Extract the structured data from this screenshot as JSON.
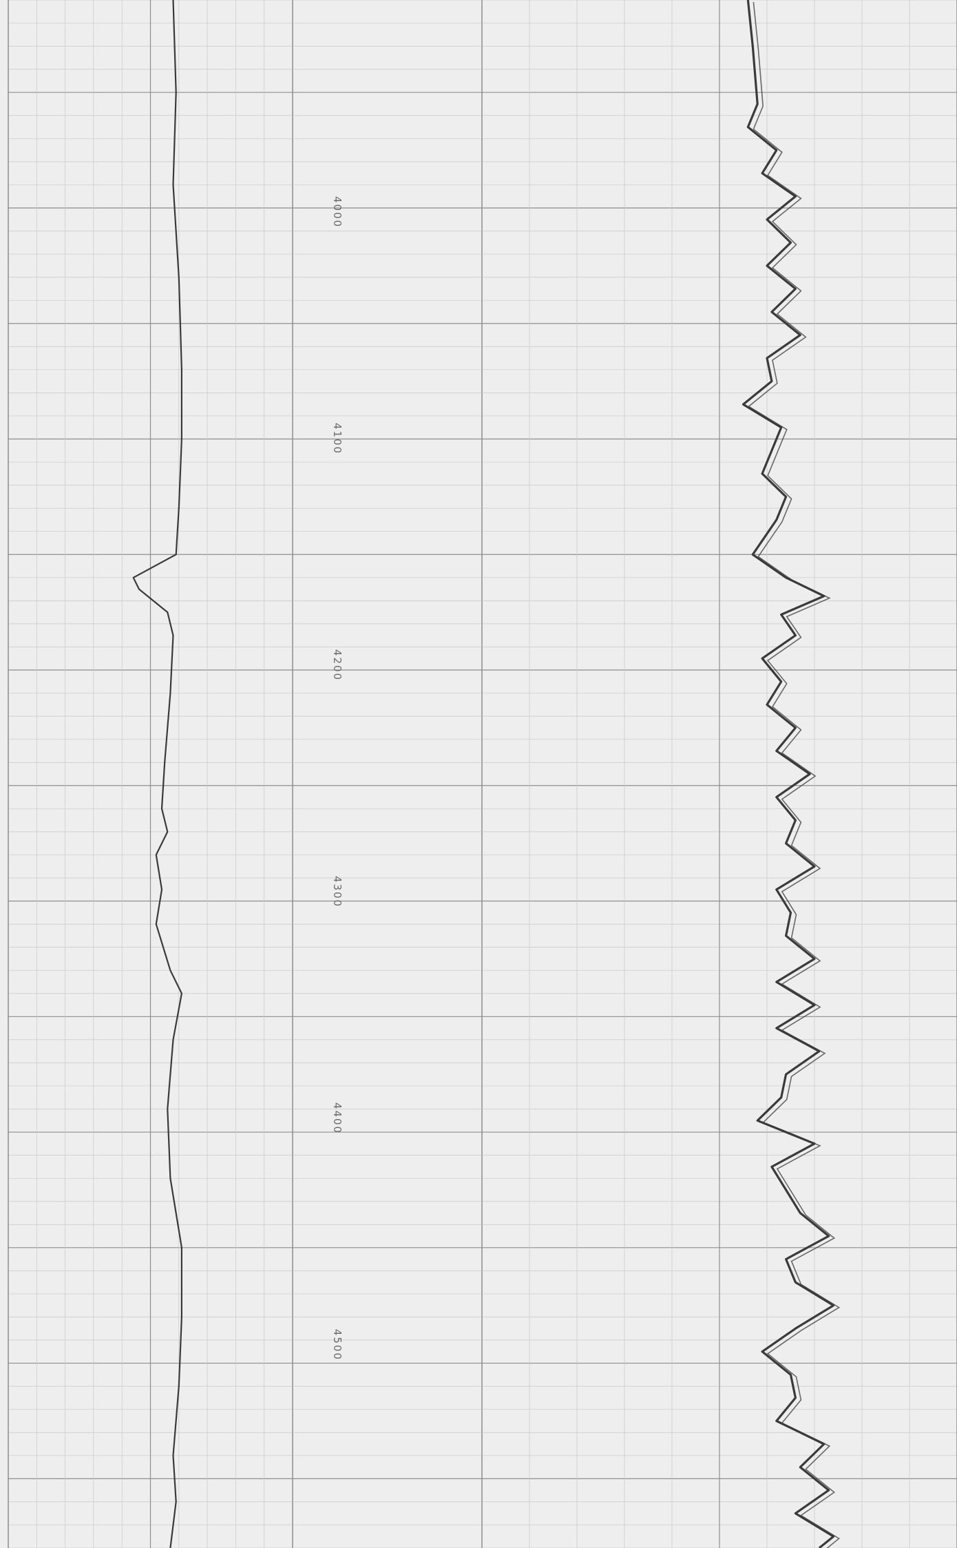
{
  "colors": {
    "paper": "#eeeeee",
    "grid_minor": "#c8c8c8",
    "grid_major": "#8d8d8d",
    "trace": "#3a3a3a",
    "depth_text": "#6a6a6a"
  },
  "chart_data": {
    "type": "line",
    "orientation": "vertical",
    "title": "",
    "depth_axis": {
      "label": "",
      "ticks": [
        "4000",
        "4100",
        "4200",
        "4300",
        "4400",
        "4500"
      ],
      "range": [
        3910,
        4580
      ],
      "grid": true
    },
    "tracks": [
      {
        "name": "",
        "xlim": [
          0,
          100
        ],
        "points": [
          [
            3910,
            58
          ],
          [
            3950,
            59
          ],
          [
            3990,
            58
          ],
          [
            4030,
            60
          ],
          [
            4070,
            61
          ],
          [
            4100,
            61
          ],
          [
            4130,
            60
          ],
          [
            4150,
            59
          ],
          [
            4160,
            44
          ],
          [
            4165,
            46
          ],
          [
            4175,
            56
          ],
          [
            4185,
            58
          ],
          [
            4210,
            57
          ],
          [
            4240,
            55
          ],
          [
            4260,
            54
          ],
          [
            4270,
            56
          ],
          [
            4280,
            52
          ],
          [
            4295,
            54
          ],
          [
            4310,
            52
          ],
          [
            4330,
            57
          ],
          [
            4340,
            61
          ],
          [
            4360,
            58
          ],
          [
            4390,
            56
          ],
          [
            4420,
            57
          ],
          [
            4450,
            61
          ],
          [
            4480,
            61
          ],
          [
            4510,
            60
          ],
          [
            4540,
            58
          ],
          [
            4560,
            59
          ],
          [
            4580,
            57
          ]
        ]
      },
      {
        "name": "",
        "xlim": [
          0,
          100
        ],
        "points": [
          [
            3910,
            56
          ],
          [
            3930,
            57
          ],
          [
            3955,
            58
          ],
          [
            3965,
            56
          ],
          [
            3975,
            62
          ],
          [
            3985,
            59
          ],
          [
            3995,
            66
          ],
          [
            4005,
            60
          ],
          [
            4015,
            65
          ],
          [
            4025,
            60
          ],
          [
            4035,
            66
          ],
          [
            4045,
            61
          ],
          [
            4055,
            67
          ],
          [
            4065,
            60
          ],
          [
            4075,
            61
          ],
          [
            4085,
            55
          ],
          [
            4095,
            63
          ],
          [
            4105,
            61
          ],
          [
            4115,
            59
          ],
          [
            4125,
            64
          ],
          [
            4135,
            62
          ],
          [
            4150,
            57
          ],
          [
            4160,
            64
          ],
          [
            4168,
            72
          ],
          [
            4176,
            63
          ],
          [
            4185,
            66
          ],
          [
            4195,
            59
          ],
          [
            4205,
            63
          ],
          [
            4215,
            60
          ],
          [
            4225,
            66
          ],
          [
            4235,
            62
          ],
          [
            4245,
            69
          ],
          [
            4255,
            62
          ],
          [
            4265,
            66
          ],
          [
            4275,
            64
          ],
          [
            4285,
            70
          ],
          [
            4295,
            62
          ],
          [
            4305,
            65
          ],
          [
            4315,
            64
          ],
          [
            4325,
            70
          ],
          [
            4335,
            62
          ],
          [
            4345,
            70
          ],
          [
            4355,
            62
          ],
          [
            4365,
            71
          ],
          [
            4375,
            64
          ],
          [
            4385,
            63
          ],
          [
            4395,
            58
          ],
          [
            4405,
            70
          ],
          [
            4415,
            61
          ],
          [
            4425,
            64
          ],
          [
            4435,
            67
          ],
          [
            4445,
            73
          ],
          [
            4455,
            64
          ],
          [
            4465,
            66
          ],
          [
            4475,
            74
          ],
          [
            4485,
            66
          ],
          [
            4495,
            59
          ],
          [
            4505,
            65
          ],
          [
            4515,
            66
          ],
          [
            4525,
            62
          ],
          [
            4535,
            72
          ],
          [
            4545,
            67
          ],
          [
            4555,
            73
          ],
          [
            4565,
            66
          ],
          [
            4575,
            74
          ],
          [
            4580,
            71
          ]
        ]
      }
    ]
  }
}
